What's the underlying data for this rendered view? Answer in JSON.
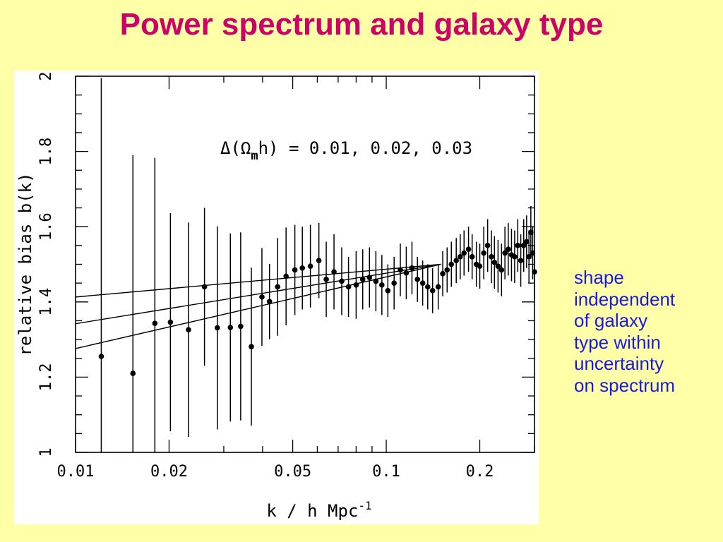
{
  "slide": {
    "title": "Power spectrum and galaxy type",
    "note_lines": [
      "shape",
      "independent",
      "of galaxy",
      "type within",
      "uncertainty",
      "on spectrum"
    ],
    "colors": {
      "background": "#ffffa8",
      "title": "#cc0066",
      "note": "#1a1adc"
    }
  },
  "chart_data": {
    "type": "scatter",
    "title": "",
    "xlabel": "k / h Mpc",
    "xlabel_superscript": "-1",
    "ylabel": "relative bias b(k)",
    "x_scale": "log",
    "xlim": [
      0.01,
      0.3
    ],
    "ylim": [
      1,
      2
    ],
    "x_ticks": [
      0.01,
      0.02,
      0.05,
      0.1,
      0.2
    ],
    "x_tick_labels": [
      "0.01",
      "0.02",
      "0.05",
      "0.1",
      "0.2"
    ],
    "y_ticks": [
      1,
      1.2,
      1.4,
      1.6,
      1.8,
      2
    ],
    "y_tick_labels": [
      "1",
      "1.2",
      "1.4",
      "1.6",
      "1.8",
      "2"
    ],
    "grid": false,
    "annotation": {
      "prefix": "Δ(Ω",
      "subscript": "m",
      "suffix": "h) = 0.01, 0.02, 0.03"
    },
    "lines": [
      {
        "name": "0.01",
        "x": [
          0.01,
          0.15
        ],
        "y": [
          1.413,
          1.5
        ]
      },
      {
        "name": "0.02",
        "x": [
          0.01,
          0.15
        ],
        "y": [
          1.342,
          1.5
        ]
      },
      {
        "name": "0.03",
        "x": [
          0.01,
          0.15
        ],
        "y": [
          1.276,
          1.5
        ]
      }
    ],
    "series": [
      {
        "x": [
          0.0121,
          0.0153,
          0.018,
          0.0202,
          0.0231,
          0.026,
          0.0286,
          0.0315,
          0.034,
          0.0368,
          0.0398,
          0.0421,
          0.0447,
          0.0476,
          0.0508,
          0.0537,
          0.057,
          0.0607,
          0.0641,
          0.0679,
          0.0719,
          0.0756,
          0.08,
          0.084,
          0.0883,
          0.0926,
          0.0968,
          0.1012,
          0.106,
          0.111,
          0.116,
          0.121,
          0.126,
          0.131,
          0.136,
          0.141,
          0.147,
          0.152,
          0.157,
          0.162,
          0.168,
          0.173,
          0.178,
          0.184,
          0.189,
          0.195,
          0.2,
          0.206,
          0.212,
          0.218,
          0.223,
          0.229,
          0.235,
          0.241,
          0.247,
          0.253,
          0.259,
          0.265,
          0.271,
          0.277,
          0.283,
          0.288,
          0.292,
          0.296,
          0.3
        ],
        "y": [
          1.255,
          1.21,
          1.343,
          1.346,
          1.326,
          1.44,
          1.331,
          1.332,
          1.335,
          1.281,
          1.413,
          1.401,
          1.44,
          1.468,
          1.485,
          1.49,
          1.495,
          1.51,
          1.46,
          1.48,
          1.455,
          1.44,
          1.445,
          1.46,
          1.465,
          1.455,
          1.445,
          1.43,
          1.45,
          1.485,
          1.477,
          1.49,
          1.46,
          1.45,
          1.44,
          1.43,
          1.44,
          1.475,
          1.485,
          1.5,
          1.51,
          1.52,
          1.53,
          1.54,
          1.52,
          1.5,
          1.495,
          1.53,
          1.55,
          1.52,
          1.505,
          1.495,
          1.485,
          1.53,
          1.54,
          1.525,
          1.52,
          1.55,
          1.51,
          1.55,
          1.56,
          1.52,
          1.585,
          1.53,
          1.48
        ],
        "y_err": [
          0.74,
          0.58,
          0.44,
          0.29,
          0.285,
          0.21,
          0.27,
          0.25,
          0.25,
          0.21,
          0.13,
          0.1,
          0.13,
          0.13,
          0.12,
          0.11,
          0.11,
          0.1,
          0.1,
          0.1,
          0.09,
          0.08,
          0.09,
          0.08,
          0.08,
          0.08,
          0.08,
          0.07,
          0.07,
          0.07,
          0.07,
          0.07,
          0.06,
          0.06,
          0.06,
          0.06,
          0.06,
          0.06,
          0.06,
          0.06,
          0.06,
          0.06,
          0.06,
          0.06,
          0.06,
          0.06,
          0.06,
          0.07,
          0.07,
          0.07,
          0.07,
          0.07,
          0.07,
          0.07,
          0.07,
          0.07,
          0.07,
          0.07,
          0.07,
          0.07,
          0.07,
          0.07,
          0.07,
          0.07,
          0.07
        ]
      }
    ]
  }
}
